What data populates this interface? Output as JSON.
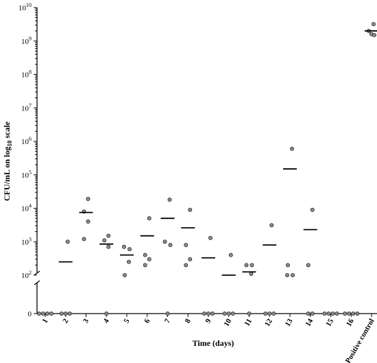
{
  "chart_data": {
    "type": "scatter",
    "xlabel": "Time (days)",
    "ylabel_main": "CFU/mL on log",
    "ylabel_sub": "10",
    "ylabel_tail": " scale",
    "yscale": "log",
    "ylim": [
      100,
      10000000000
    ],
    "axis_break": true,
    "zero_label": "0",
    "yticks": [
      {
        "base": "10",
        "exp": "2",
        "value": 100
      },
      {
        "base": "10",
        "exp": "3",
        "value": 1000
      },
      {
        "base": "10",
        "exp": "4",
        "value": 10000
      },
      {
        "base": "10",
        "exp": "5",
        "value": 100000
      },
      {
        "base": "10",
        "exp": "6",
        "value": 1000000
      },
      {
        "base": "10",
        "exp": "7",
        "value": 10000000
      },
      {
        "base": "10",
        "exp": "8",
        "value": 100000000
      },
      {
        "base": "10",
        "exp": "9",
        "value": 1000000000
      },
      {
        "base": "10",
        "exp": "10",
        "value": 10000000000
      }
    ],
    "groups": [
      {
        "label": "1",
        "points": [
          0,
          0,
          0,
          0
        ],
        "median": null
      },
      {
        "label": "2",
        "points": [
          1000,
          0,
          0,
          0
        ],
        "median": 250
      },
      {
        "label": "3",
        "points": [
          19000,
          8000,
          4000,
          1200
        ],
        "median": 7500
      },
      {
        "label": "4",
        "points": [
          1500,
          1100,
          700,
          0
        ],
        "median": 850
      },
      {
        "label": "5",
        "points": [
          700,
          600,
          250,
          100
        ],
        "median": 400
      },
      {
        "label": "6",
        "points": [
          5000,
          400,
          300,
          200
        ],
        "median": 1500
      },
      {
        "label": "7",
        "points": [
          18000,
          1000,
          800,
          0
        ],
        "median": 5000
      },
      {
        "label": "8",
        "points": [
          9000,
          800,
          300,
          200
        ],
        "median": 2600
      },
      {
        "label": "9",
        "points": [
          1300,
          0,
          0,
          0
        ],
        "median": 330
      },
      {
        "label": "10",
        "points": [
          400,
          0,
          0,
          0
        ],
        "median": 100
      },
      {
        "label": "11",
        "points": [
          200,
          200,
          110,
          0
        ],
        "median": 125
      },
      {
        "label": "12",
        "points": [
          3100,
          0,
          0,
          0
        ],
        "median": 800
      },
      {
        "label": "13",
        "points": [
          600000,
          200,
          100,
          100
        ],
        "median": 150000
      },
      {
        "label": "14",
        "points": [
          9000,
          200,
          0,
          0
        ],
        "median": 2300
      },
      {
        "label": "15",
        "points": [
          0,
          0,
          0,
          0
        ],
        "median": null
      },
      {
        "label": "16",
        "points": [
          0,
          0,
          0,
          0
        ],
        "median": null
      },
      {
        "label": "Positive control",
        "points": [
          3200000000,
          2000000000,
          1600000000,
          1500000000
        ],
        "median": 2000000000
      }
    ]
  }
}
